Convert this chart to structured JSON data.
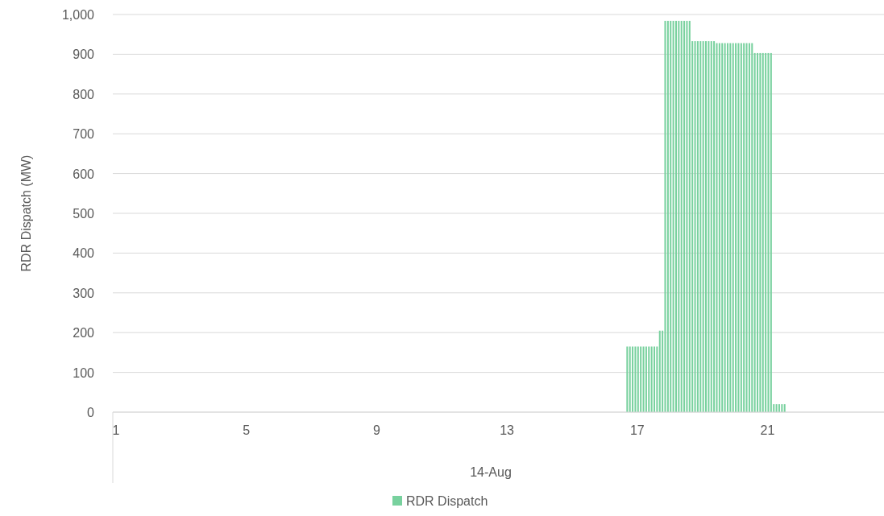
{
  "chart_data": {
    "type": "bar",
    "xlabel": "14-Aug",
    "ylabel": "RDR Dispatch (MW)",
    "x": [
      16.667,
      16.75,
      16.833,
      16.917,
      17,
      17.083,
      17.167,
      17.25,
      17.333,
      17.417,
      17.5,
      17.583,
      17.667,
      17.75,
      17.833,
      17.917,
      18,
      18.083,
      18.167,
      18.25,
      18.333,
      18.417,
      18.5,
      18.583,
      18.667,
      18.75,
      18.833,
      18.917,
      19,
      19.083,
      19.167,
      19.25,
      19.333,
      19.417,
      19.5,
      19.583,
      19.667,
      19.75,
      19.833,
      19.917,
      20,
      20.083,
      20.167,
      20.25,
      20.333,
      20.417,
      20.5,
      20.583,
      20.667,
      20.75,
      20.833,
      20.917,
      21,
      21.083,
      21.167,
      21.25,
      21.333,
      21.417,
      21.5
    ],
    "series": [
      {
        "name": "RDR Dispatch",
        "color": "#78d19e",
        "values": [
          165,
          165,
          165,
          165,
          165,
          165,
          165,
          165,
          165,
          165,
          165,
          165,
          205,
          205,
          984,
          984,
          984,
          984,
          984,
          984,
          984,
          984,
          984,
          984,
          933,
          933,
          933,
          933,
          933,
          933,
          933,
          933,
          933,
          928,
          928,
          928,
          928,
          928,
          928,
          928,
          928,
          928,
          928,
          928,
          928,
          928,
          928,
          903,
          903,
          903,
          903,
          903,
          903,
          903,
          20,
          20,
          20,
          20,
          20
        ]
      }
    ],
    "xlim": [
      0.9,
      24.6
    ],
    "xticks": [
      1,
      5,
      9,
      13,
      17,
      21
    ],
    "ylim": [
      0,
      1000
    ],
    "yticks": [
      0,
      100,
      200,
      300,
      400,
      500,
      600,
      700,
      800,
      900,
      {
        "value": 1000,
        "label": "1,000"
      }
    ],
    "grid": "y",
    "legend": "bottom"
  }
}
